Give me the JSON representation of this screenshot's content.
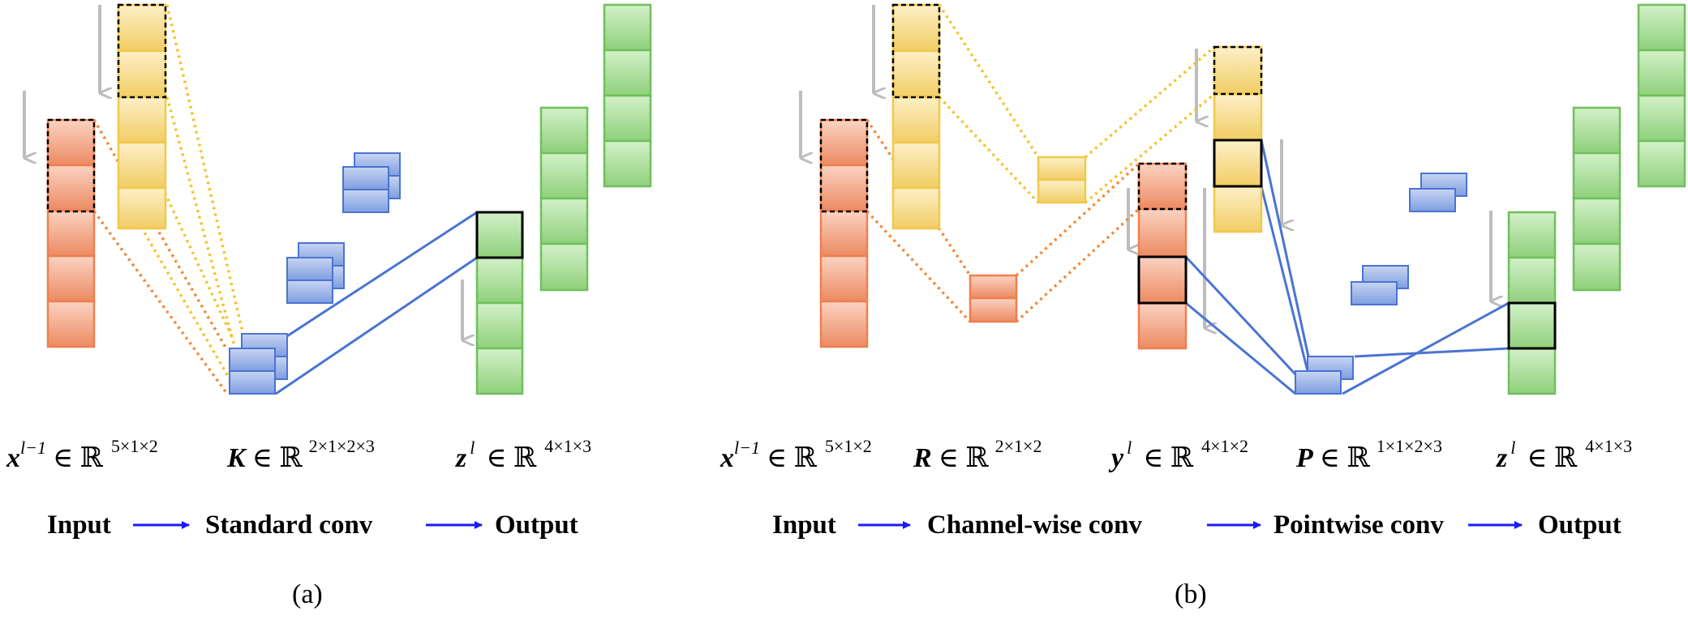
{
  "panel_a": {
    "label_x": {
      "sym": "x",
      "sup": "l−1",
      "set": "∈ ℝ",
      "dims": "5×1×2"
    },
    "label_k": {
      "sym": "K",
      "set": "∈ ℝ",
      "dims": "2×1×2×3"
    },
    "label_z": {
      "sym": "z",
      "sup": "l",
      "set": "∈ ℝ",
      "dims": "4×1×3"
    },
    "flow": {
      "input": "Input",
      "conv": "Standard conv",
      "output": "Output"
    },
    "caption": "(a)"
  },
  "panel_b": {
    "label_x": {
      "sym": "x",
      "sup": "l−1",
      "set": "∈ ℝ",
      "dims": "5×1×2"
    },
    "label_r": {
      "sym": "R",
      "set": "∈ ℝ",
      "dims": "2×1×2"
    },
    "label_y": {
      "sym": "y",
      "sup": "l",
      "set": "∈ ℝ",
      "dims": "4×1×2"
    },
    "label_p": {
      "sym": "P",
      "set": "∈ ℝ",
      "dims": "1×1×2×3"
    },
    "label_z": {
      "sym": "z",
      "sup": "l",
      "set": "∈ ℝ",
      "dims": "4×1×3"
    },
    "flow": {
      "input": "Input",
      "conv1": "Channel-wise conv",
      "conv2": "Pointwise conv",
      "output": "Output"
    },
    "caption": "(b)"
  },
  "colors": {
    "orange": "#ef7f4f",
    "yellow": "#f1cd64",
    "green": "#8fd07c",
    "blue": "#6f8fd6",
    "flow_arrow": "#1a1aff",
    "gray_arrow": "#bdbdbd"
  }
}
